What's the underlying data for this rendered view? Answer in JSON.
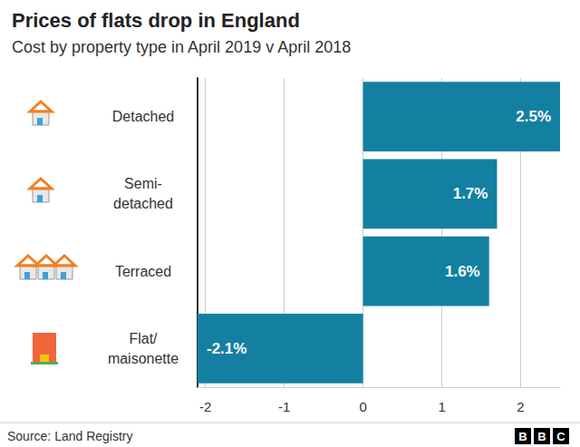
{
  "chart_data": {
    "type": "bar",
    "orientation": "horizontal",
    "title": "Prices of flats drop in England",
    "subtitle": "Cost by property type in April 2019 v April 2018",
    "categories": [
      "Detached",
      "Semi-\ndetached",
      "Terraced",
      "Flat/\nmaisonette"
    ],
    "values": [
      2.5,
      1.7,
      1.6,
      -2.1
    ],
    "value_labels": [
      "2.5%",
      "1.7%",
      "1.6%",
      "-2.1%"
    ],
    "data_labels": true,
    "color": "#1380a1",
    "xlim": [
      -2.1,
      2.5
    ],
    "xticks": [
      -2,
      -1,
      0,
      1,
      2
    ],
    "grid": true,
    "source": "Source: Land Registry",
    "logo": "BBC"
  }
}
